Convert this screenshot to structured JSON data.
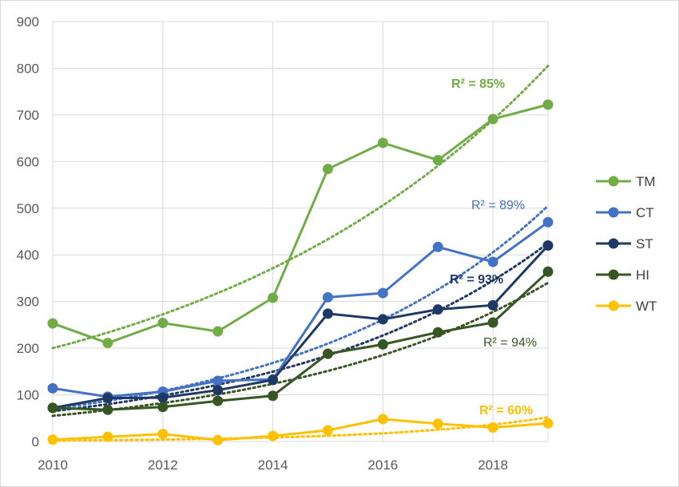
{
  "chart_data": {
    "type": "line",
    "title": "",
    "xlabel": "",
    "ylabel": "",
    "x": [
      2010,
      2011,
      2012,
      2013,
      2014,
      2015,
      2016,
      2017,
      2018,
      2019
    ],
    "xlim": [
      2010,
      2019
    ],
    "ylim": [
      0,
      900
    ],
    "x_ticks": [
      "2010",
      "2012",
      "2014",
      "2016",
      "2018"
    ],
    "y_ticks": [
      "0",
      "100",
      "200",
      "300",
      "400",
      "500",
      "600",
      "700",
      "800",
      "900"
    ],
    "grid": "on",
    "legend_position": "right",
    "series": [
      {
        "name": "TM",
        "color": "#70ad47",
        "values": [
          253,
          211,
          254,
          236,
          308,
          584,
          640,
          603,
          691,
          722
        ],
        "trend_start": 200,
        "trend_end": 805,
        "r2_label": "R² = 85%",
        "r2_bold": true
      },
      {
        "name": "CT",
        "color": "#4472c4",
        "values": [
          114,
          96,
          107,
          130,
          133,
          309,
          318,
          417,
          385,
          470
        ],
        "trend_start": 70,
        "trend_end": 505,
        "r2_label": "R² = 89%",
        "r2_bold": false
      },
      {
        "name": "ST",
        "color": "#203864",
        "values": [
          72,
          93,
          94,
          110,
          132,
          274,
          262,
          283,
          292,
          420
        ],
        "trend_start": 65,
        "trend_end": 425,
        "r2_label": "R² = 93%",
        "r2_bold": true
      },
      {
        "name": "HI",
        "color": "#375623",
        "values": [
          72,
          68,
          74,
          87,
          98,
          188,
          208,
          234,
          255,
          364
        ],
        "trend_start": 55,
        "trend_end": 340,
        "r2_label": "R² = 94%",
        "r2_bold": false
      },
      {
        "name": "WT",
        "color": "#ffc000",
        "values": [
          4,
          10,
          16,
          3,
          12,
          24,
          48,
          38,
          30,
          39
        ],
        "trend_start": 2,
        "trend_end": 52,
        "r2_label": "R² = 60%",
        "r2_bold": true
      }
    ]
  }
}
